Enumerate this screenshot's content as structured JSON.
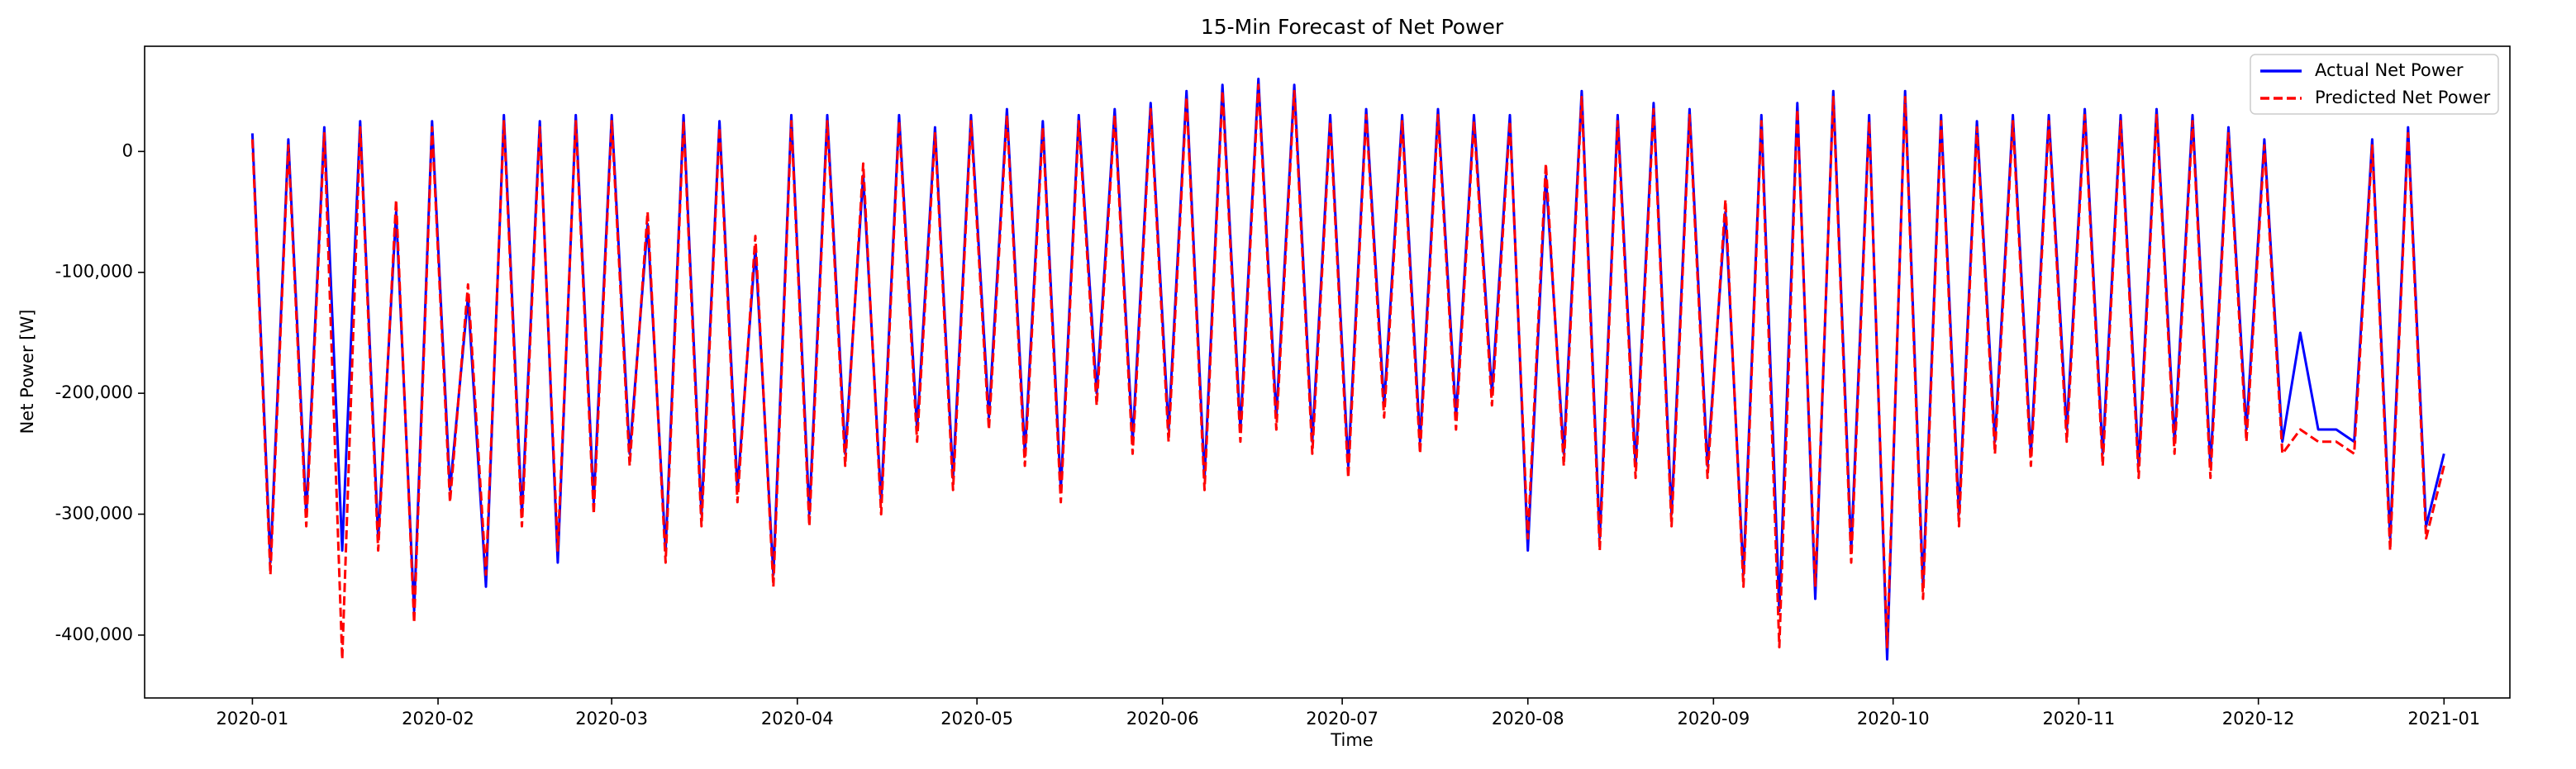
{
  "chart_data": {
    "type": "line",
    "title": "15-Min Forecast of Net Power",
    "x_label": "Time",
    "y_label": "Net Power [W]",
    "x": [
      0,
      3,
      6,
      9,
      12,
      15,
      18,
      21,
      24,
      27,
      30,
      33,
      36,
      39,
      42,
      45,
      48,
      51,
      54,
      57,
      60,
      63,
      66,
      69,
      72,
      75,
      78,
      81,
      84,
      87,
      90,
      93,
      96,
      99,
      102,
      105,
      108,
      111,
      114,
      117,
      120,
      123,
      126,
      129,
      132,
      135,
      138,
      141,
      144,
      147,
      150,
      153,
      156,
      159,
      162,
      165,
      168,
      171,
      174,
      177,
      180,
      183,
      186,
      189,
      192,
      195,
      198,
      201,
      204,
      207,
      210,
      213,
      216,
      219,
      222,
      225,
      228,
      231,
      234,
      237,
      240,
      243,
      246,
      249,
      252,
      255,
      258,
      261,
      264,
      267,
      270,
      273,
      276,
      279,
      282,
      285,
      288,
      291,
      294,
      297,
      300,
      303,
      306,
      309,
      312,
      315,
      318,
      321,
      324,
      327,
      330,
      333,
      336,
      339,
      342,
      345,
      348,
      351,
      354,
      357,
      360,
      363,
      366
    ],
    "series": [
      {
        "name": "Actual Net Power",
        "color": "#0000ff",
        "dash": false,
        "values": [
          15000,
          -340000,
          10000,
          -300000,
          20000,
          -330000,
          25000,
          -320000,
          -50000,
          -380000,
          25000,
          -280000,
          -120000,
          -360000,
          30000,
          -300000,
          25000,
          -340000,
          30000,
          -290000,
          30000,
          -250000,
          -60000,
          -330000,
          30000,
          -300000,
          25000,
          -280000,
          -80000,
          -350000,
          30000,
          -300000,
          30000,
          -250000,
          -20000,
          -290000,
          30000,
          -230000,
          20000,
          -270000,
          30000,
          -220000,
          35000,
          -250000,
          25000,
          -280000,
          30000,
          -200000,
          35000,
          -240000,
          40000,
          -230000,
          50000,
          -270000,
          55000,
          -230000,
          60000,
          -220000,
          55000,
          -240000,
          30000,
          -260000,
          35000,
          -210000,
          30000,
          -240000,
          35000,
          -220000,
          30000,
          -200000,
          30000,
          -330000,
          -20000,
          -250000,
          50000,
          -320000,
          30000,
          -260000,
          40000,
          -300000,
          35000,
          -260000,
          -50000,
          -350000,
          30000,
          -380000,
          40000,
          -370000,
          50000,
          -330000,
          30000,
          -420000,
          50000,
          -360000,
          30000,
          -300000,
          25000,
          -240000,
          30000,
          -250000,
          30000,
          -230000,
          35000,
          -250000,
          30000,
          -260000,
          35000,
          -240000,
          30000,
          -260000,
          20000,
          -230000,
          10000,
          -240000,
          -150000,
          -230000,
          -230000,
          -240000,
          10000,
          -320000,
          20000,
          -310000,
          -250000
        ]
      },
      {
        "name": "Predicted Net Power",
        "color": "#ff0000",
        "dash": true,
        "values": [
          10000,
          -350000,
          5000,
          -310000,
          15000,
          -420000,
          20000,
          -330000,
          -40000,
          -390000,
          20000,
          -290000,
          -110000,
          -350000,
          25000,
          -310000,
          20000,
          -330000,
          25000,
          -300000,
          25000,
          -260000,
          -50000,
          -340000,
          25000,
          -310000,
          20000,
          -290000,
          -70000,
          -360000,
          25000,
          -310000,
          25000,
          -260000,
          -10000,
          -300000,
          25000,
          -240000,
          15000,
          -280000,
          25000,
          -230000,
          30000,
          -260000,
          20000,
          -290000,
          25000,
          -210000,
          30000,
          -250000,
          35000,
          -240000,
          45000,
          -280000,
          50000,
          -240000,
          55000,
          -230000,
          50000,
          -250000,
          25000,
          -270000,
          30000,
          -220000,
          25000,
          -250000,
          30000,
          -230000,
          25000,
          -210000,
          25000,
          -320000,
          -10000,
          -260000,
          45000,
          -330000,
          25000,
          -270000,
          35000,
          -310000,
          30000,
          -270000,
          -40000,
          -360000,
          25000,
          -410000,
          35000,
          -360000,
          45000,
          -340000,
          25000,
          -410000,
          45000,
          -370000,
          25000,
          -310000,
          20000,
          -250000,
          25000,
          -260000,
          25000,
          -240000,
          30000,
          -260000,
          25000,
          -270000,
          30000,
          -250000,
          25000,
          -270000,
          15000,
          -240000,
          5000,
          -250000,
          -230000,
          -240000,
          -240000,
          -250000,
          5000,
          -330000,
          15000,
          -320000,
          -260000
        ]
      }
    ],
    "xlim": [
      -18,
      377
    ],
    "xticks": [
      {
        "value": 0,
        "label": "2020-01"
      },
      {
        "value": 31,
        "label": "2020-02"
      },
      {
        "value": 60,
        "label": "2020-03"
      },
      {
        "value": 91,
        "label": "2020-04"
      },
      {
        "value": 121,
        "label": "2020-05"
      },
      {
        "value": 152,
        "label": "2020-06"
      },
      {
        "value": 182,
        "label": "2020-07"
      },
      {
        "value": 213,
        "label": "2020-08"
      },
      {
        "value": 244,
        "label": "2020-09"
      },
      {
        "value": 274,
        "label": "2020-10"
      },
      {
        "value": 305,
        "label": "2020-11"
      },
      {
        "value": 335,
        "label": "2020-12"
      },
      {
        "value": 366,
        "label": "2021-01"
      }
    ],
    "ylim": [
      -452000,
      87000
    ],
    "yticks": [
      0,
      {
        "value": -100000,
        "label": "-100,000"
      },
      {
        "value": -200000,
        "label": "-200,000"
      },
      {
        "value": -300000,
        "label": "-300,000"
      },
      {
        "value": -400000,
        "label": "-400,000"
      }
    ],
    "grid": false,
    "legend": "upper right"
  }
}
